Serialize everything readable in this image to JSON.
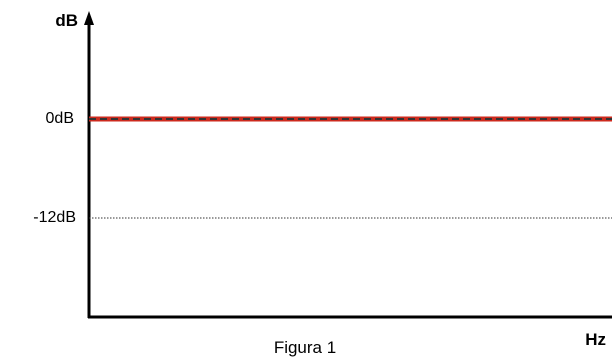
{
  "chart_data": {
    "type": "line",
    "xlabel": "Hz",
    "ylabel": "dB",
    "caption": "Figura 1",
    "ylim": [
      -24,
      12
    ],
    "y_ticks": [
      {
        "value": 0,
        "label": "0dB"
      },
      {
        "value": -12,
        "label": "-12dB"
      }
    ],
    "series": [
      {
        "y": 0,
        "color": "#cc2a1e",
        "dash_color": "#333333"
      }
    ]
  },
  "colors": {
    "axis": "#000000",
    "reference_line": "#333333"
  }
}
